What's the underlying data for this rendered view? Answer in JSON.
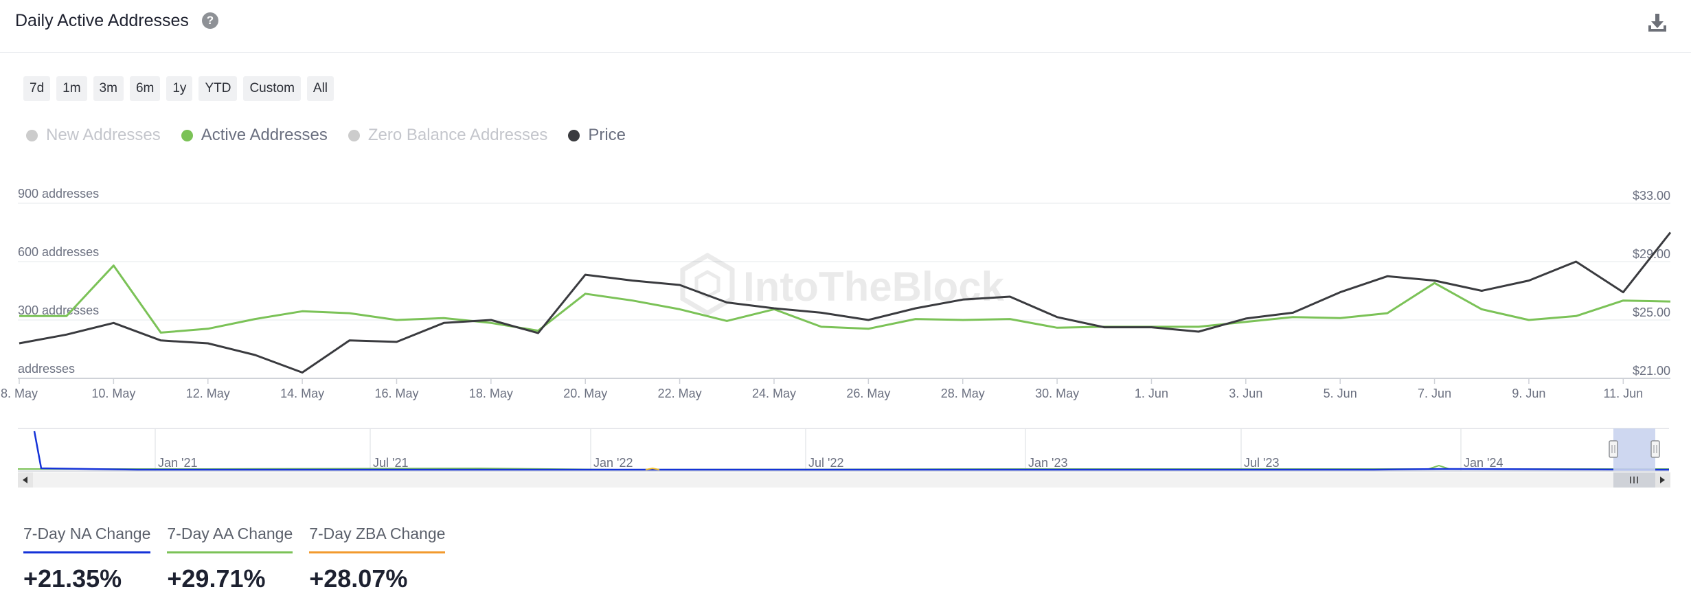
{
  "header": {
    "title": "Daily Active Addresses",
    "help_icon": "question-circle-icon",
    "download_icon": "download-icon"
  },
  "ranges": [
    "7d",
    "1m",
    "3m",
    "6m",
    "1y",
    "YTD",
    "Custom",
    "All"
  ],
  "legend": [
    {
      "label": "New Addresses",
      "color": "#cccccc",
      "enabled": false
    },
    {
      "label": "Active Addresses",
      "color": "#7bc257",
      "enabled": true
    },
    {
      "label": "Zero Balance Addresses",
      "color": "#cccccc",
      "enabled": false
    },
    {
      "label": "Price",
      "color": "#3a3b3f",
      "enabled": true
    }
  ],
  "watermark": "IntoTheBlock",
  "chart_data": {
    "type": "line",
    "x": [
      "8. May",
      "9. May",
      "10. May",
      "11. May",
      "12. May",
      "13. May",
      "14. May",
      "15. May",
      "16. May",
      "17. May",
      "18. May",
      "19. May",
      "20. May",
      "21. May",
      "22. May",
      "23. May",
      "24. May",
      "25. May",
      "26. May",
      "27. May",
      "28. May",
      "29. May",
      "30. May",
      "31. May",
      "1. Jun",
      "2. Jun",
      "3. Jun",
      "4. Jun",
      "5. Jun",
      "6. Jun",
      "7. Jun",
      "8. Jun",
      "9. Jun",
      "10. Jun",
      "11. Jun",
      "12. Jun"
    ],
    "x_tick_labels": [
      "8. May",
      "10. May",
      "12. May",
      "14. May",
      "16. May",
      "18. May",
      "20. May",
      "22. May",
      "24. May",
      "26. May",
      "28. May",
      "30. May",
      "1. Jun",
      "3. Jun",
      "5. Jun",
      "7. Jun",
      "9. Jun",
      "11. Jun"
    ],
    "y_left": {
      "ticks": [
        0,
        300,
        600,
        900
      ],
      "tick_labels": [
        "addresses",
        "300 addresses",
        "600 addresses",
        "900 addresses"
      ],
      "range": [
        0,
        900
      ]
    },
    "y_right": {
      "ticks": [
        21,
        25,
        29,
        33
      ],
      "tick_labels": [
        "$21.00",
        "$25.00",
        "$29.00",
        "$33.00"
      ],
      "range": [
        21,
        33
      ]
    },
    "series": [
      {
        "name": "Active Addresses",
        "axis": "left",
        "color": "#7bc257",
        "values": [
          320,
          320,
          580,
          235,
          255,
          305,
          345,
          335,
          300,
          310,
          285,
          245,
          435,
          400,
          355,
          295,
          355,
          265,
          255,
          305,
          300,
          305,
          260,
          265,
          265,
          265,
          290,
          315,
          310,
          335,
          490,
          355,
          300,
          320,
          400,
          395
        ]
      },
      {
        "name": "Price",
        "axis": "right",
        "color": "#3a3b3f",
        "values": [
          23.4,
          24.0,
          24.8,
          23.6,
          23.4,
          22.6,
          21.4,
          23.6,
          23.5,
          24.8,
          25.0,
          24.1,
          28.1,
          27.7,
          27.4,
          26.2,
          25.8,
          25.5,
          25.0,
          25.8,
          26.4,
          26.6,
          25.2,
          24.5,
          24.5,
          24.2,
          25.1,
          25.5,
          26.9,
          28.0,
          27.7,
          27.0,
          27.7,
          29.0,
          26.9,
          31.0
        ]
      }
    ]
  },
  "navigator": {
    "labels": [
      "Jan '21",
      "Jul '21",
      "Jan '22",
      "Jul '22",
      "Jan '23",
      "Jul '23",
      "Jan '24"
    ],
    "scroll_icon": "scroll-grip-icon",
    "left_arrow_icon": "arrow-left-icon",
    "right_arrow_icon": "arrow-right-icon"
  },
  "stats": [
    {
      "label": "7-Day NA Change",
      "value": "+21.35%",
      "color": "#1432d8"
    },
    {
      "label": "7-Day AA Change",
      "value": "+29.71%",
      "color": "#7bc257"
    },
    {
      "label": "7-Day ZBA Change",
      "value": "+28.07%",
      "color": "#f29a2e"
    }
  ]
}
